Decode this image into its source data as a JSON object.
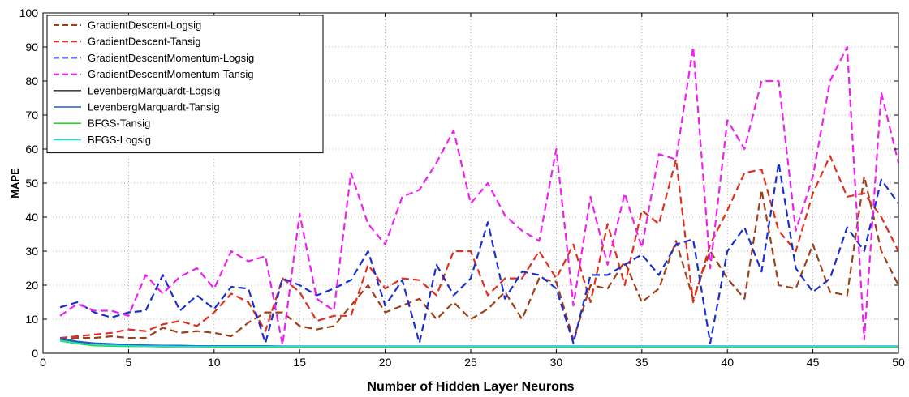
{
  "chart_data": {
    "type": "line",
    "title": "",
    "xlabel": "Number of Hidden Layer Neurons",
    "ylabel": "MAPE",
    "xlim": [
      0,
      50
    ],
    "ylim": [
      0,
      100
    ],
    "xticks": [
      "0",
      "5",
      "10",
      "15",
      "20",
      "25",
      "30",
      "35",
      "40",
      "45",
      "50"
    ],
    "yticks": [
      "0",
      "10",
      "20",
      "30",
      "40",
      "50",
      "60",
      "70",
      "80",
      "90",
      "100"
    ],
    "grid": true,
    "legend_position": "top-left",
    "x": [
      1,
      2,
      3,
      4,
      5,
      6,
      7,
      8,
      9,
      10,
      11,
      12,
      13,
      14,
      15,
      16,
      17,
      18,
      19,
      20,
      21,
      22,
      23,
      24,
      25,
      26,
      27,
      28,
      29,
      30,
      31,
      32,
      33,
      34,
      35,
      36,
      37,
      38,
      39,
      40,
      41,
      42,
      43,
      44,
      45,
      46,
      47,
      48,
      49,
      50
    ],
    "series": [
      {
        "name": "GradientDescent-Logsig",
        "color": "#a0401a",
        "dash": "dashed",
        "values": [
          4,
          4.5,
          4.5,
          5,
          4.5,
          4.5,
          7.5,
          6,
          6.5,
          6,
          5,
          9,
          12,
          12,
          8,
          7,
          8,
          14,
          20,
          12,
          14,
          16,
          10,
          15,
          10,
          13,
          18,
          10,
          22,
          21,
          4,
          20,
          19,
          27,
          15,
          19,
          33,
          16,
          30,
          22,
          16,
          48,
          20,
          19,
          32,
          18,
          17,
          52,
          30,
          20
        ]
      },
      {
        "name": "GradientDescent-Tansig",
        "color": "#e03020",
        "dash": "dashed",
        "values": [
          4.5,
          5,
          5.5,
          6,
          7,
          6.5,
          8.5,
          9.5,
          8,
          12,
          17.5,
          15,
          6.5,
          22,
          18,
          9.5,
          11,
          11,
          26,
          19,
          22,
          21.5,
          17,
          30,
          30,
          17,
          22,
          22,
          30,
          22,
          32,
          15,
          38,
          20,
          42,
          38,
          57,
          15,
          32,
          42,
          53,
          54,
          36,
          30,
          47,
          58,
          46,
          47,
          40,
          30
        ]
      },
      {
        "name": "GradientDescentMomentum-Logsig",
        "color": "#1a2fd0",
        "dash": "dashed",
        "values": [
          13.5,
          15,
          12,
          10.5,
          12,
          12.5,
          23,
          12.5,
          17,
          13,
          19.5,
          19,
          3,
          22,
          20,
          17,
          19,
          21.5,
          30,
          14,
          21.5,
          3,
          26,
          17,
          22,
          38.5,
          16,
          24,
          23,
          19,
          3,
          23,
          23,
          26,
          29,
          23,
          32,
          33.5,
          3,
          30,
          37,
          24,
          56,
          25,
          18,
          22,
          37,
          30,
          51,
          44
        ]
      },
      {
        "name": "GradientDescentMomentum-Tansig",
        "color": "#ee22ee",
        "dash": "dashed",
        "values": [
          11,
          14.5,
          12.5,
          12.5,
          11,
          23,
          17.5,
          22.5,
          25,
          19,
          30,
          27,
          28.5,
          2.5,
          41,
          16,
          12.5,
          53,
          38,
          32,
          46,
          48,
          56,
          65.5,
          44,
          50,
          40.5,
          36,
          33,
          60,
          14,
          46,
          26,
          47,
          31,
          58.5,
          57,
          90,
          25,
          68.5,
          60,
          80,
          80,
          36,
          52,
          80,
          90,
          4,
          76.5,
          56
        ]
      },
      {
        "name": "LevenbergMarquardt-Logsig",
        "color": "#444444",
        "dash": "solid",
        "values": [
          4,
          3.2,
          2.6,
          2.4,
          2.3,
          2.2,
          2.1,
          2.1,
          2.0,
          2.0,
          2.0,
          2.0,
          1.9,
          1.9,
          1.9,
          1.9,
          1.9,
          1.9,
          1.9,
          1.9,
          1.9,
          1.9,
          1.9,
          1.9,
          1.9,
          1.9,
          1.9,
          1.9,
          1.9,
          1.9,
          1.9,
          1.9,
          1.9,
          1.9,
          1.9,
          1.9,
          1.9,
          1.9,
          1.9,
          1.9,
          1.9,
          1.9,
          1.9,
          1.9,
          1.9,
          1.9,
          1.9,
          1.9,
          1.9,
          1.9
        ]
      },
      {
        "name": "LevenbergMarquardt-Tansig",
        "color": "#1a5fd0",
        "dash": "solid",
        "values": [
          4.5,
          3.5,
          3.0,
          2.8,
          2.5,
          2.4,
          2.3,
          2.3,
          2.2,
          2.2,
          2.2,
          2.2,
          2.2,
          2.1,
          2.1,
          2.1,
          2.1,
          2.1,
          2.1,
          2.1,
          2.1,
          2.1,
          2.1,
          2.1,
          2.1,
          2.1,
          2.1,
          2.1,
          2.1,
          2.1,
          2.1,
          2.1,
          2.1,
          2.1,
          2.1,
          2.1,
          2.1,
          2.1,
          2.1,
          2.1,
          2.1,
          2.1,
          2.1,
          2.1,
          2.1,
          2.1,
          2.1,
          2.1,
          2.1,
          2.1
        ]
      },
      {
        "name": "BFGS-Tansig",
        "color": "#22dd22",
        "dash": "solid",
        "values": [
          3.6,
          2.8,
          2.2,
          2.1,
          2.0,
          2.0,
          1.9,
          1.9,
          1.9,
          1.8,
          1.8,
          1.8,
          1.8,
          1.8,
          1.8,
          1.8,
          1.8,
          1.8,
          1.8,
          1.8,
          1.8,
          1.8,
          1.8,
          1.8,
          1.8,
          1.8,
          1.8,
          1.8,
          1.8,
          1.8,
          1.8,
          1.8,
          1.8,
          1.8,
          1.8,
          1.8,
          1.8,
          1.8,
          1.8,
          1.8,
          1.8,
          1.8,
          1.8,
          1.8,
          1.8,
          1.8,
          1.8,
          1.8,
          1.8,
          1.8
        ]
      },
      {
        "name": "BFGS-Logsig",
        "color": "#22dddd",
        "dash": "solid",
        "values": [
          3.8,
          3.0,
          2.5,
          2.3,
          2.2,
          2.1,
          2.1,
          2.0,
          2.0,
          2.0,
          2.0,
          2.0,
          2.0,
          2.0,
          2.0,
          2.0,
          2.0,
          2.0,
          2.0,
          2.0,
          2.0,
          2.0,
          2.0,
          2.0,
          2.0,
          2.0,
          2.0,
          2.0,
          2.0,
          2.0,
          2.0,
          2.0,
          2.0,
          2.0,
          2.0,
          2.0,
          2.0,
          2.0,
          2.0,
          2.0,
          2.0,
          2.0,
          2.0,
          2.0,
          2.0,
          2.0,
          2.0,
          2.0,
          2.0,
          2.0
        ]
      }
    ]
  }
}
